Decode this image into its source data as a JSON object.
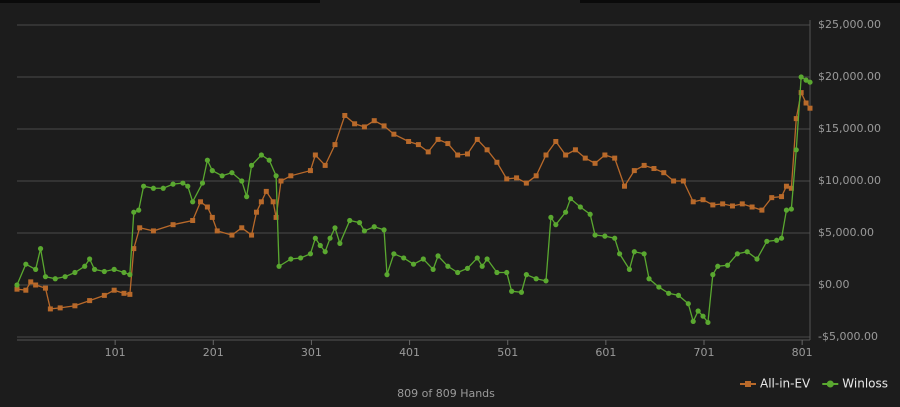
{
  "chart_data": {
    "type": "line",
    "footer": "809 of 809 Hands",
    "xlim": [
      1,
      809
    ],
    "xticks": [
      101,
      201,
      301,
      401,
      501,
      601,
      701,
      801
    ],
    "ylim": [
      -5000,
      25000
    ],
    "yticks": [
      {
        "value": -5000,
        "label": "-$5,000.00"
      },
      {
        "value": 0,
        "label": "$0.00"
      },
      {
        "value": 5000,
        "label": "$5,000.00"
      },
      {
        "value": 10000,
        "label": "$10,000.00"
      },
      {
        "value": 15000,
        "label": "$15,000.00"
      },
      {
        "value": 20000,
        "label": "$20,000.00"
      },
      {
        "value": 25000,
        "label": "$25,000.00"
      }
    ],
    "grid": true,
    "legend": "bottom-right",
    "series": [
      {
        "name": "All-in-EV",
        "color": "#b8692a",
        "marker": "square",
        "x": [
          1,
          10,
          15,
          20,
          30,
          35,
          45,
          60,
          75,
          90,
          100,
          110,
          116,
          120,
          126,
          140,
          160,
          180,
          188,
          195,
          200,
          205,
          220,
          230,
          240,
          245,
          250,
          255,
          262,
          265,
          270,
          280,
          300,
          305,
          315,
          325,
          335,
          345,
          355,
          365,
          375,
          385,
          400,
          410,
          420,
          430,
          440,
          450,
          460,
          470,
          480,
          490,
          500,
          510,
          520,
          530,
          540,
          550,
          560,
          570,
          580,
          590,
          600,
          610,
          620,
          630,
          640,
          650,
          660,
          670,
          680,
          690,
          700,
          710,
          720,
          730,
          740,
          750,
          760,
          770,
          780,
          785,
          790,
          795,
          800,
          805,
          809
        ],
        "values": [
          -400,
          -500,
          300,
          0,
          -300,
          -2300,
          -2200,
          -2000,
          -1500,
          -1000,
          -500,
          -800,
          -900,
          3500,
          5500,
          5200,
          5800,
          6200,
          8000,
          7500,
          6500,
          5200,
          4800,
          5500,
          4800,
          7000,
          8000,
          9000,
          8000,
          6500,
          10000,
          10500,
          11000,
          12500,
          11500,
          13500,
          16300,
          15500,
          15200,
          15800,
          15300,
          14500,
          13800,
          13500,
          12800,
          14000,
          13600,
          12500,
          12600,
          14000,
          13000,
          11800,
          10200,
          10300,
          9800,
          10500,
          12500,
          13800,
          12500,
          13000,
          12200,
          11700,
          12500,
          12200,
          9500,
          11000,
          11500,
          11200,
          10800,
          10000,
          10000,
          8000,
          8200,
          7700,
          7800,
          7600,
          7800,
          7500,
          7200,
          8400,
          8500,
          9500,
          9300,
          16000,
          18500,
          17500,
          17000
        ]
      },
      {
        "name": "Winloss",
        "color": "#5aa830",
        "marker": "circle",
        "x": [
          1,
          10,
          20,
          25,
          30,
          40,
          50,
          60,
          70,
          75,
          80,
          90,
          100,
          110,
          116,
          120,
          125,
          130,
          140,
          150,
          160,
          170,
          175,
          180,
          190,
          195,
          200,
          210,
          220,
          230,
          235,
          240,
          250,
          258,
          265,
          268,
          280,
          290,
          300,
          305,
          310,
          315,
          320,
          325,
          330,
          340,
          350,
          355,
          365,
          375,
          378,
          385,
          395,
          405,
          415,
          425,
          430,
          440,
          450,
          460,
          470,
          475,
          480,
          490,
          500,
          505,
          515,
          520,
          530,
          540,
          545,
          550,
          560,
          565,
          575,
          585,
          590,
          600,
          610,
          615,
          625,
          630,
          640,
          645,
          655,
          665,
          675,
          685,
          690,
          695,
          700,
          705,
          710,
          715,
          725,
          735,
          745,
          755,
          765,
          775,
          780,
          785,
          790,
          795,
          800,
          805,
          809
        ],
        "values": [
          0,
          2000,
          1500,
          3500,
          800,
          600,
          800,
          1200,
          1800,
          2500,
          1500,
          1300,
          1500,
          1200,
          1000,
          7000,
          7200,
          9500,
          9300,
          9300,
          9700,
          9800,
          9500,
          8000,
          9800,
          12000,
          11000,
          10500,
          10800,
          10000,
          8500,
          11500,
          12500,
          12000,
          10500,
          1800,
          2500,
          2600,
          3000,
          4500,
          3800,
          3200,
          4500,
          5500,
          4000,
          6200,
          6000,
          5200,
          5600,
          5300,
          1000,
          3000,
          2600,
          2000,
          2500,
          1500,
          2800,
          1800,
          1200,
          1600,
          2600,
          1800,
          2500,
          1200,
          1200,
          -600,
          -700,
          1000,
          600,
          400,
          6500,
          5800,
          7000,
          8300,
          7500,
          6800,
          4800,
          4700,
          4500,
          3000,
          1500,
          3200,
          3000,
          600,
          -200,
          -800,
          -1000,
          -1800,
          -3500,
          -2500,
          -3000,
          -3600,
          1000,
          1800,
          1900,
          3000,
          3200,
          2500,
          4200,
          4300,
          4500,
          7200,
          7300,
          13000,
          20000,
          19700,
          19500
        ]
      }
    ]
  }
}
